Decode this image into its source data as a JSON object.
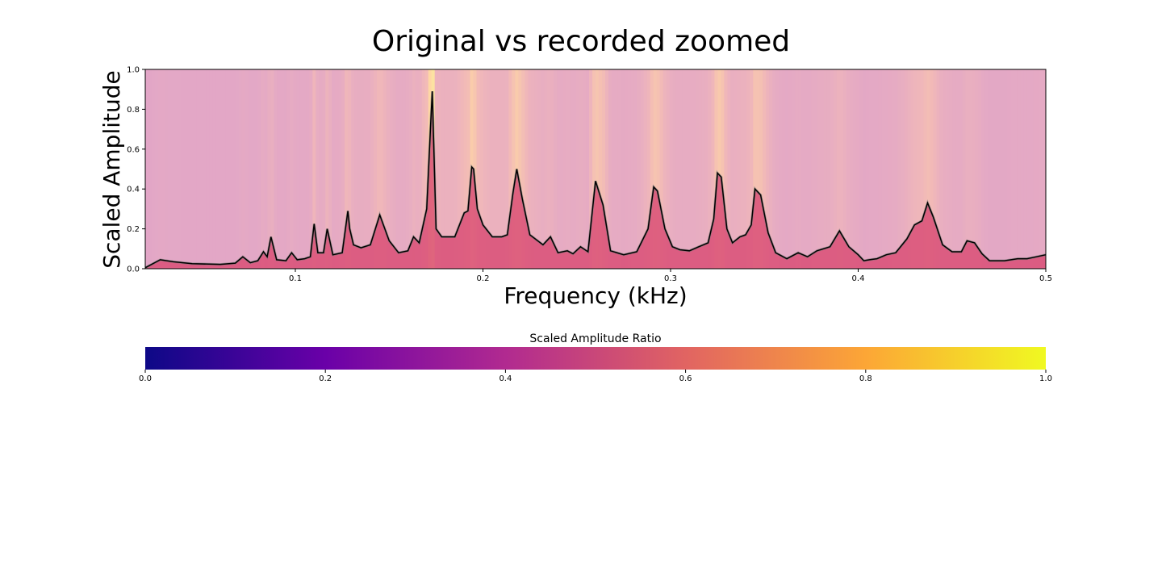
{
  "chart_data": [
    {
      "type": "area",
      "title": "Original vs recorded zoomed",
      "xlabel": "Frequency (kHz)",
      "ylabel": "Scaled Amplitude",
      "xlim": [
        0.02,
        0.5
      ],
      "ylim": [
        0,
        1
      ],
      "xticks": [
        "0.1",
        "0.2",
        "0.3",
        "0.4",
        "0.5"
      ],
      "yticks": [
        "0.0",
        "0.2",
        "0.4",
        "0.6",
        "0.8",
        "1.0"
      ],
      "grid": false,
      "background": "vertical color bands mapped to the Scaled Amplitude Ratio colormap",
      "series": [
        {
          "x": [
            0.02,
            0.028,
            0.035,
            0.045,
            0.06,
            0.068,
            0.072,
            0.076,
            0.08,
            0.083,
            0.085,
            0.087,
            0.09,
            0.095,
            0.098,
            0.101,
            0.105,
            0.108,
            0.11,
            0.112,
            0.115,
            0.117,
            0.12,
            0.125,
            0.128,
            0.129,
            0.131,
            0.135,
            0.14,
            0.145,
            0.15,
            0.155,
            0.16,
            0.163,
            0.166,
            0.17,
            0.172,
            0.173,
            0.175,
            0.178,
            0.185,
            0.19,
            0.192,
            0.194,
            0.195,
            0.197,
            0.2,
            0.205,
            0.21,
            0.213,
            0.216,
            0.218,
            0.221,
            0.225,
            0.232,
            0.236,
            0.24,
            0.245,
            0.248,
            0.252,
            0.256,
            0.26,
            0.264,
            0.268,
            0.275,
            0.282,
            0.288,
            0.291,
            0.293,
            0.297,
            0.301,
            0.305,
            0.31,
            0.315,
            0.32,
            0.323,
            0.325,
            0.327,
            0.33,
            0.333,
            0.337,
            0.34,
            0.343,
            0.345,
            0.348,
            0.352,
            0.356,
            0.362,
            0.368,
            0.373,
            0.378,
            0.385,
            0.39,
            0.395,
            0.4,
            0.403,
            0.406,
            0.41,
            0.415,
            0.42,
            0.426,
            0.43,
            0.434,
            0.437,
            0.44,
            0.445,
            0.45,
            0.455,
            0.458,
            0.462,
            0.466,
            0.47,
            0.478,
            0.485,
            0.49,
            0.495,
            0.5
          ],
          "y": [
            0.005,
            0.045,
            0.035,
            0.025,
            0.022,
            0.028,
            0.06,
            0.03,
            0.04,
            0.085,
            0.06,
            0.16,
            0.045,
            0.04,
            0.08,
            0.045,
            0.05,
            0.06,
            0.225,
            0.08,
            0.08,
            0.2,
            0.07,
            0.08,
            0.29,
            0.2,
            0.12,
            0.105,
            0.12,
            0.27,
            0.14,
            0.08,
            0.09,
            0.16,
            0.13,
            0.3,
            0.7,
            0.89,
            0.2,
            0.16,
            0.16,
            0.28,
            0.29,
            0.51,
            0.5,
            0.3,
            0.22,
            0.16,
            0.16,
            0.17,
            0.38,
            0.5,
            0.35,
            0.17,
            0.12,
            0.16,
            0.08,
            0.09,
            0.075,
            0.11,
            0.085,
            0.44,
            0.32,
            0.09,
            0.07,
            0.085,
            0.2,
            0.41,
            0.39,
            0.2,
            0.11,
            0.095,
            0.09,
            0.11,
            0.13,
            0.25,
            0.48,
            0.46,
            0.2,
            0.13,
            0.16,
            0.17,
            0.22,
            0.4,
            0.37,
            0.18,
            0.08,
            0.05,
            0.08,
            0.06,
            0.09,
            0.11,
            0.19,
            0.11,
            0.07,
            0.04,
            0.045,
            0.05,
            0.07,
            0.08,
            0.15,
            0.22,
            0.24,
            0.33,
            0.26,
            0.12,
            0.085,
            0.085,
            0.14,
            0.13,
            0.075,
            0.04,
            0.04,
            0.05,
            0.05,
            0.06,
            0.07
          ]
        }
      ]
    },
    {
      "type": "colorbar",
      "label": "Scaled Amplitude Ratio",
      "range": [
        0,
        1
      ],
      "ticks": [
        "0.0",
        "0.2",
        "0.4",
        "0.6",
        "0.8",
        "1.0"
      ],
      "colormap": [
        "#0d0887",
        "#6a00a8",
        "#b12a90",
        "#e16462",
        "#fca636",
        "#f0f921"
      ]
    }
  ]
}
